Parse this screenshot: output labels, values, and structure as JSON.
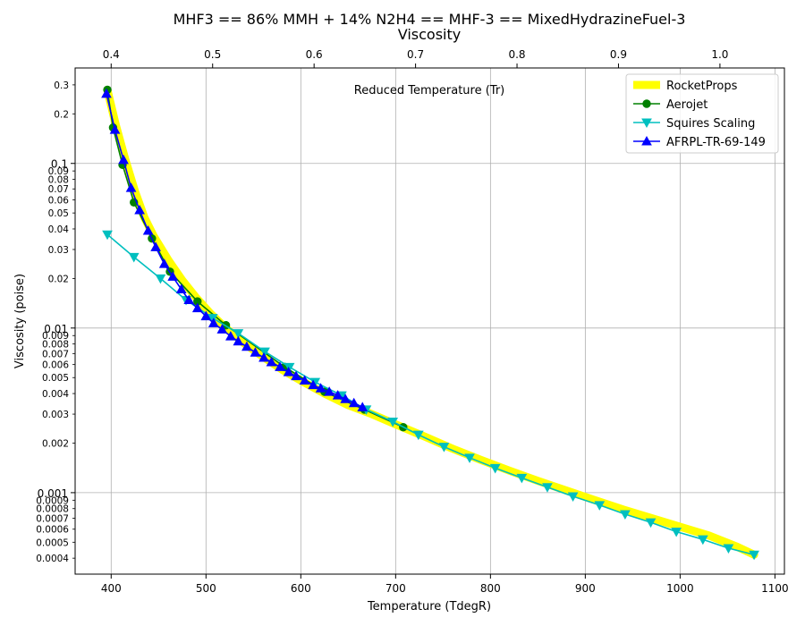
{
  "chart_data": {
    "type": "line",
    "title": "MHF3 == 86% MMH + 14% N2H4 == MHF-3 == MixedHydrazineFuel-3",
    "subtitle": "Viscosity",
    "xlabel": "Temperature (TdegR)",
    "ylabel": "Viscosity (poise)",
    "top_xlabel": "Reduced Temperature (Tr)",
    "xlim": [
      362,
      1110
    ],
    "ylim": [
      0.00032,
      0.38
    ],
    "yscale": "log",
    "grid": true,
    "legend_position": "top-right",
    "x_ticks": [
      400,
      500,
      600,
      700,
      800,
      900,
      1000,
      1100
    ],
    "x_tick_labels": [
      "400",
      "500",
      "600",
      "700",
      "800",
      "900",
      "1000",
      "1100"
    ],
    "top_x_ticks": [
      0.4,
      0.5,
      0.6,
      0.7,
      0.8,
      0.9,
      1.0
    ],
    "top_x_tick_labels": [
      "0.4",
      "0.5",
      "0.6",
      "0.7",
      "0.8",
      "0.9",
      "1.0"
    ],
    "top_x_to_bottom": {
      "tr_a": 0.4,
      "t_a": 400,
      "tr_b": 0.5,
      "t_b": 507
    },
    "y_major_ticks": [
      0.001,
      0.01,
      0.1
    ],
    "y_major_labels": [
      "0.001",
      "0.01",
      "0.1"
    ],
    "y_minor_ticks": [
      0.0004,
      0.0005,
      0.0006,
      0.0007,
      0.0008,
      0.0009,
      0.002,
      0.003,
      0.004,
      0.005,
      0.006,
      0.007,
      0.008,
      0.009,
      0.02,
      0.03,
      0.04,
      0.05,
      0.06,
      0.07,
      0.08,
      0.09,
      0.2,
      0.3
    ],
    "y_minor_labels": [
      "0.0004",
      "0.0005",
      "0.0006",
      "0.0007",
      "0.0008",
      "0.0009",
      "0.002",
      "0.003",
      "0.004",
      "0.005",
      "0.006",
      "0.007",
      "0.008",
      "0.009",
      "0.02",
      "0.03",
      "0.04",
      "0.05",
      "0.06",
      "0.07",
      "0.08",
      "0.09",
      "0.2",
      "0.3"
    ],
    "series": [
      {
        "name": "RocketProps",
        "color": "#ffff00",
        "marker": "none",
        "x": [
          396,
          405,
          415,
          425,
          435,
          445,
          460,
          475,
          490,
          505,
          520,
          540,
          560,
          580,
          600,
          625,
          650,
          675,
          700,
          730,
          760,
          790,
          820,
          850,
          880,
          910,
          940,
          970,
          1000,
          1030,
          1060,
          1078
        ],
        "values": [
          0.28,
          0.17,
          0.105,
          0.068,
          0.047,
          0.036,
          0.026,
          0.0195,
          0.0152,
          0.0122,
          0.0101,
          0.0081,
          0.0067,
          0.0056,
          0.0048,
          0.004,
          0.0034,
          0.003,
          0.0026,
          0.0022,
          0.00185,
          0.00158,
          0.00136,
          0.00118,
          0.00103,
          0.0009,
          0.00079,
          0.0007,
          0.00062,
          0.00055,
          0.00047,
          0.00042
        ]
      },
      {
        "name": "Aerojet",
        "color": "#008000",
        "marker": "circle",
        "x": [
          396,
          402,
          412,
          424,
          443,
          462,
          491,
          521,
          583,
          625,
          667,
          708
        ],
        "values": [
          0.28,
          0.165,
          0.098,
          0.058,
          0.035,
          0.022,
          0.0145,
          0.0104,
          0.0058,
          0.0041,
          0.0032,
          0.0025
        ]
      },
      {
        "name": "Squires Scaling",
        "color": "#00bfbf",
        "marker": "triangle-down",
        "x": [
          396,
          424,
          452,
          479,
          507,
          534,
          562,
          588,
          615,
          643,
          669,
          697,
          724,
          751,
          778,
          805,
          833,
          860,
          887,
          915,
          942,
          969,
          996,
          1024,
          1051,
          1078
        ],
        "values": [
          0.037,
          0.027,
          0.02,
          0.0148,
          0.0115,
          0.0093,
          0.0072,
          0.0058,
          0.0047,
          0.0039,
          0.0032,
          0.0027,
          0.00225,
          0.0019,
          0.00163,
          0.00141,
          0.00123,
          0.00108,
          0.00095,
          0.00084,
          0.00074,
          0.00066,
          0.00058,
          0.00052,
          0.00046,
          0.00042
        ]
      },
      {
        "name": "AFRPL-TR-69-149",
        "color": "#0000ff",
        "marker": "triangle-up",
        "x": [
          395,
          404,
          413,
          421,
          430,
          439,
          447,
          456,
          465,
          474,
          482,
          491,
          500,
          508,
          517,
          526,
          534,
          543,
          552,
          561,
          569,
          578,
          587,
          595,
          604,
          613,
          621,
          630,
          639,
          647,
          656,
          665
        ],
        "values": [
          0.265,
          0.16,
          0.105,
          0.071,
          0.052,
          0.039,
          0.031,
          0.0245,
          0.0205,
          0.0172,
          0.0148,
          0.0132,
          0.0118,
          0.0107,
          0.0098,
          0.0089,
          0.0083,
          0.0077,
          0.0071,
          0.0066,
          0.0062,
          0.0058,
          0.0054,
          0.0051,
          0.0048,
          0.0045,
          0.0043,
          0.0041,
          0.0039,
          0.0037,
          0.0035,
          0.0033
        ]
      }
    ]
  }
}
